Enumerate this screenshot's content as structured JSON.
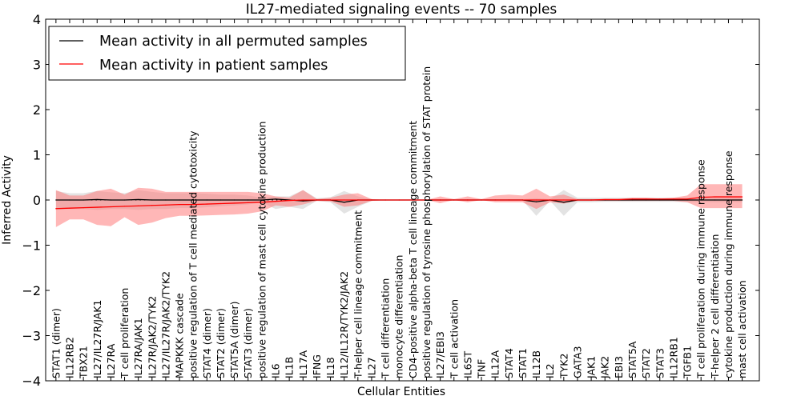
{
  "chart_data": {
    "type": "line",
    "title": "IL27-mediated signaling events -- 70 samples",
    "xlabel": "Cellular Entities",
    "ylabel": "Inferred Activity",
    "ylim": [
      -4,
      4
    ],
    "yticks": [
      -4,
      -3,
      -2,
      -1,
      0,
      1,
      2,
      3,
      4
    ],
    "ytick_labels": [
      "−4",
      "−3",
      "−2",
      "−1",
      "0",
      "1",
      "2",
      "3",
      "4"
    ],
    "grid": false,
    "legend_position": "top-left",
    "categories": [
      "STAT1 (dimer)",
      "IL12RB2",
      "TBX21",
      "IL27/IL27R/JAK1",
      "IL27RA",
      "T cell proliferation",
      "IL27RA/JAK1",
      "IL27R/JAK2/TYK2",
      "IL27/IL27R/JAK2/TYK2",
      "MAPKKK cascade",
      "positive regulation of T cell mediated cytotoxicity",
      "STAT4 (dimer)",
      "STAT2 (dimer)",
      "STAT5A (dimer)",
      "STAT3 (dimer)",
      "positive regulation of mast cell cytokine production",
      "IL6",
      "IL1B",
      "IL17A",
      "IFNG",
      "IL18",
      "IL12/IL12R/TYK2/JAK2",
      "T-helper cell lineage commitment",
      "IL27",
      "T cell differentiation",
      "monocyte differentiation",
      "CD4-positive alpha-beta T cell lineage commitment",
      "positive regulation of tyrosine phosphorylation of STAT protein",
      "IL27/EBI3",
      "T cell activation",
      "IL6ST",
      "TNF",
      "IL12A",
      "STAT4",
      "STAT1",
      "IL12B",
      "IL2",
      "TYK2",
      "GATA3",
      "JAK1",
      "JAK2",
      "EBI3",
      "STAT5A",
      "STAT2",
      "STAT3",
      "IL12RB1",
      "TGFB1",
      "T cell proliferation during immune response",
      "T-helper 2 cell differentiation",
      "cytokine production during immune response",
      "mast cell activation"
    ],
    "series": [
      {
        "name": "Mean activity in all permuted samples",
        "color": "#000000",
        "values": [
          0.0,
          0.0,
          0.0,
          0.01,
          0.0,
          0.0,
          0.01,
          0.0,
          0.0,
          0.0,
          0.0,
          0.0,
          0.0,
          0.0,
          0.0,
          0.0,
          0.02,
          0.0,
          -0.02,
          0.0,
          0.0,
          -0.05,
          0.0,
          0.0,
          0.0,
          0.0,
          0.0,
          0.0,
          0.0,
          0.0,
          0.0,
          0.0,
          0.0,
          0.0,
          0.0,
          -0.04,
          0.0,
          -0.05,
          0.0,
          0.0,
          0.0,
          0.0,
          0.0,
          0.0,
          0.0,
          0.0,
          0.0,
          0.0,
          0.0,
          0.0,
          0.0
        ],
        "band_low": [
          -0.22,
          -0.2,
          -0.2,
          -0.22,
          -0.2,
          -0.2,
          -0.22,
          -0.2,
          -0.2,
          -0.18,
          -0.18,
          -0.16,
          -0.14,
          -0.12,
          -0.1,
          -0.05,
          -0.2,
          -0.15,
          -0.2,
          -0.02,
          -0.05,
          -0.3,
          -0.15,
          -0.02,
          -0.01,
          -0.01,
          -0.01,
          -0.01,
          -0.02,
          -0.01,
          -0.02,
          -0.01,
          -0.01,
          -0.01,
          -0.01,
          -0.35,
          -0.02,
          -0.35,
          -0.05,
          -0.05,
          -0.04,
          -0.04,
          -0.04,
          -0.04,
          -0.04,
          -0.04,
          -0.05,
          -0.05,
          -0.05,
          -0.05,
          -0.05
        ],
        "band_high": [
          0.2,
          0.15,
          0.15,
          0.2,
          0.17,
          0.15,
          0.22,
          0.18,
          0.15,
          0.15,
          0.15,
          0.14,
          0.12,
          0.12,
          0.1,
          0.05,
          0.08,
          0.08,
          0.22,
          0.04,
          0.06,
          0.2,
          0.08,
          0.02,
          0.01,
          0.01,
          0.01,
          0.01,
          0.02,
          0.02,
          0.02,
          0.02,
          0.02,
          0.02,
          0.02,
          0.04,
          0.02,
          0.22,
          0.05,
          0.05,
          0.05,
          0.05,
          0.05,
          0.05,
          0.05,
          0.05,
          0.05,
          0.05,
          0.05,
          0.05,
          0.05
        ]
      },
      {
        "name": "Mean activity in patient samples",
        "color": "#ff0000",
        "values": [
          -0.19,
          -0.18,
          -0.17,
          -0.16,
          -0.15,
          -0.14,
          -0.13,
          -0.12,
          -0.11,
          -0.1,
          -0.1,
          -0.09,
          -0.08,
          -0.07,
          -0.06,
          -0.05,
          -0.03,
          -0.01,
          0.0,
          0.0,
          0.0,
          0.0,
          0.0,
          0.0,
          0.0,
          0.0,
          0.0,
          0.0,
          0.0,
          0.0,
          0.0,
          0.0,
          0.0,
          0.0,
          0.0,
          0.0,
          0.0,
          0.0,
          0.0,
          0.0,
          0.01,
          0.01,
          0.02,
          0.02,
          0.02,
          0.02,
          0.02,
          0.06,
          0.07,
          0.07,
          0.07
        ],
        "band_low": [
          -0.6,
          -0.43,
          -0.43,
          -0.55,
          -0.58,
          -0.38,
          -0.55,
          -0.5,
          -0.4,
          -0.35,
          -0.35,
          -0.34,
          -0.33,
          -0.32,
          -0.3,
          -0.25,
          -0.12,
          -0.15,
          -0.1,
          -0.02,
          -0.03,
          -0.15,
          -0.12,
          -0.02,
          0.0,
          0.0,
          0.0,
          0.0,
          -0.07,
          0.0,
          -0.05,
          0.0,
          -0.05,
          -0.05,
          -0.05,
          -0.2,
          -0.05,
          -0.08,
          -0.02,
          -0.02,
          -0.02,
          -0.02,
          -0.02,
          -0.02,
          -0.02,
          -0.02,
          -0.05,
          -0.18,
          -0.18,
          -0.18,
          -0.18
        ],
        "band_high": [
          0.22,
          0.1,
          0.1,
          0.2,
          0.25,
          0.12,
          0.27,
          0.25,
          0.18,
          0.18,
          0.18,
          0.18,
          0.18,
          0.18,
          0.18,
          0.15,
          0.08,
          0.05,
          0.22,
          0.02,
          0.05,
          0.12,
          0.15,
          0.02,
          0.0,
          0.0,
          0.0,
          0.0,
          0.08,
          0.02,
          0.08,
          0.02,
          0.1,
          0.12,
          0.1,
          0.25,
          0.08,
          0.12,
          0.02,
          0.02,
          0.02,
          0.02,
          0.05,
          0.05,
          0.03,
          0.05,
          0.1,
          0.35,
          0.35,
          0.35,
          0.35
        ]
      }
    ],
    "band_colors": {
      "permuted": "#d0d0d0",
      "patient": "#ff7b7b"
    }
  }
}
